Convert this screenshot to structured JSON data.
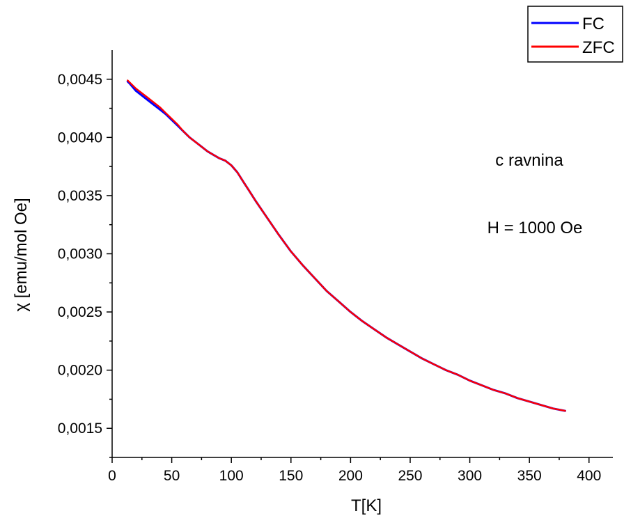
{
  "chart_data": {
    "type": "line",
    "title": "",
    "xlabel": "T[K]",
    "ylabel": "χ [emu/mol Oe]",
    "xlim": [
      0,
      420
    ],
    "ylim": [
      0.00125,
      0.00475
    ],
    "x_ticks": [
      0,
      50,
      100,
      150,
      200,
      250,
      300,
      350,
      400
    ],
    "x_tick_labels": [
      "0",
      "50",
      "100",
      "150",
      "200",
      "250",
      "300",
      "350",
      "400"
    ],
    "y_ticks": [
      0.0015,
      0.002,
      0.0025,
      0.003,
      0.0035,
      0.004,
      0.0045
    ],
    "y_tick_labels": [
      "0,0015",
      "0,0020",
      "0,0025",
      "0,0030",
      "0,0035",
      "0,0040",
      "0,0045"
    ],
    "grid": false,
    "legend_position": "top-right",
    "annotations": [
      "c ravnina",
      "H = 1000 Oe"
    ],
    "series": [
      {
        "name": "FC",
        "color": "#0000ff",
        "x": [
          13,
          15,
          20,
          25,
          30,
          35,
          40,
          45,
          50,
          55,
          60,
          65,
          70,
          75,
          80,
          85,
          90,
          95,
          100,
          105,
          110,
          115,
          120,
          130,
          140,
          150,
          160,
          170,
          180,
          190,
          200,
          210,
          220,
          230,
          240,
          250,
          260,
          270,
          280,
          290,
          300,
          310,
          320,
          330,
          340,
          350,
          360,
          370,
          380
        ],
        "y": [
          0.00448,
          0.00446,
          0.0044,
          0.00436,
          0.00432,
          0.00428,
          0.00424,
          0.0042,
          0.00415,
          0.0041,
          0.00405,
          0.004,
          0.00396,
          0.00392,
          0.00388,
          0.00385,
          0.00382,
          0.0038,
          0.00376,
          0.0037,
          0.00362,
          0.00354,
          0.00346,
          0.00331,
          0.00316,
          0.00302,
          0.0029,
          0.00279,
          0.00268,
          0.00259,
          0.0025,
          0.00242,
          0.00235,
          0.00228,
          0.00222,
          0.00216,
          0.0021,
          0.00205,
          0.002,
          0.00196,
          0.00191,
          0.00187,
          0.00183,
          0.0018,
          0.00176,
          0.00173,
          0.0017,
          0.00167,
          0.00165
        ]
      },
      {
        "name": "ZFC",
        "color": "#ff0000",
        "x": [
          13,
          15,
          20,
          25,
          30,
          35,
          40,
          45,
          50,
          55,
          60,
          65,
          70,
          75,
          80,
          85,
          90,
          95,
          100,
          105,
          110,
          115,
          120,
          130,
          140,
          150,
          160,
          170,
          180,
          190,
          200,
          210,
          220,
          230,
          240,
          250,
          260,
          270,
          280,
          290,
          300,
          310,
          320,
          330,
          340,
          350,
          360,
          370,
          380
        ],
        "y": [
          0.00449,
          0.00447,
          0.00442,
          0.00438,
          0.00434,
          0.0043,
          0.00426,
          0.00421,
          0.00416,
          0.00411,
          0.00405,
          0.004,
          0.00396,
          0.00392,
          0.00388,
          0.00385,
          0.00382,
          0.0038,
          0.00376,
          0.0037,
          0.00362,
          0.00354,
          0.00346,
          0.00331,
          0.00316,
          0.00302,
          0.0029,
          0.00279,
          0.00268,
          0.00259,
          0.0025,
          0.00242,
          0.00235,
          0.00228,
          0.00222,
          0.00216,
          0.0021,
          0.00205,
          0.002,
          0.00196,
          0.00191,
          0.00187,
          0.00183,
          0.0018,
          0.00176,
          0.00173,
          0.0017,
          0.00167,
          0.00165
        ]
      }
    ]
  }
}
